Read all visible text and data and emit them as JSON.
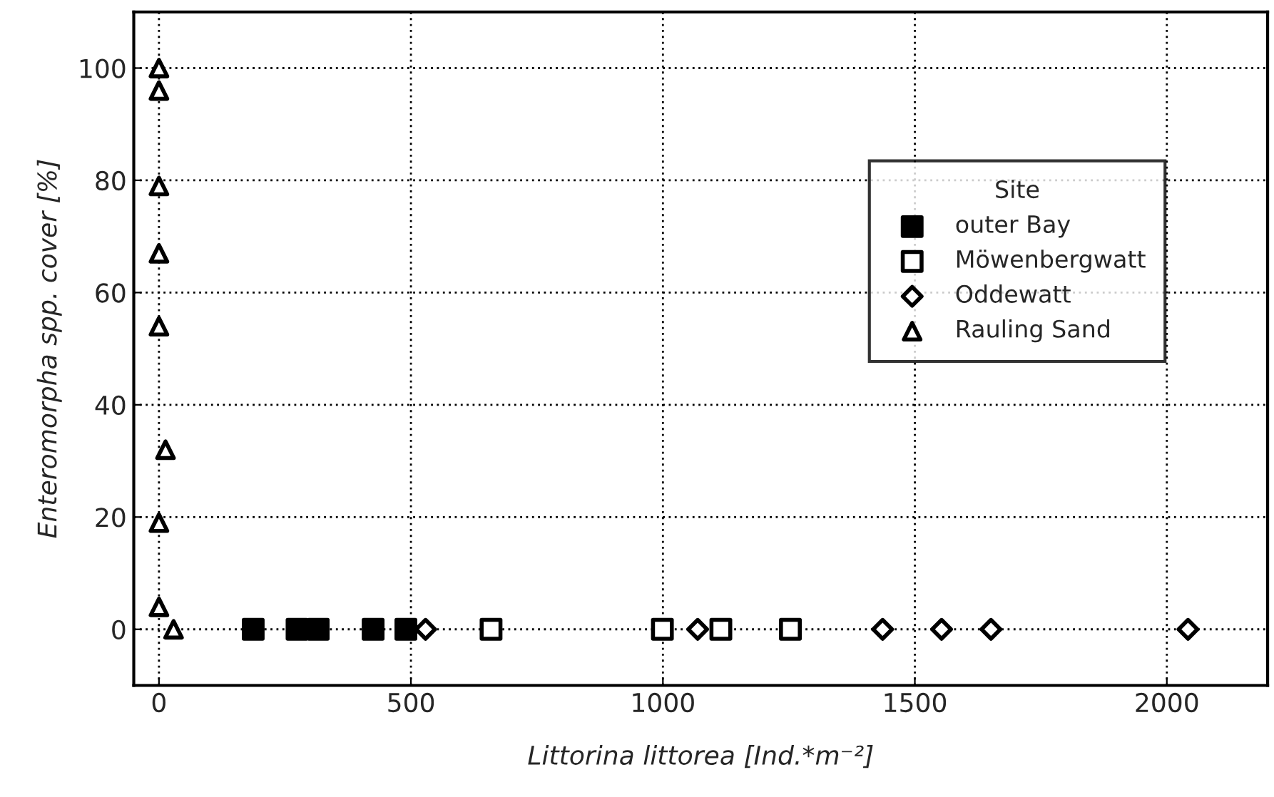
{
  "chart_data": {
    "type": "scatter",
    "xlabel": "Littorina littorea [Ind.*m⁻²]",
    "ylabel": "Enteromorpha spp. cover [%]",
    "legend_title": "Site",
    "legend": "right",
    "grid": true,
    "xlim": [
      -50,
      2200
    ],
    "ylim": [
      -10,
      110
    ],
    "xticks": [
      0,
      500,
      1000,
      1500,
      2000
    ],
    "yticks": [
      0,
      20,
      40,
      60,
      80,
      100
    ],
    "series": [
      {
        "name": "outer Bay",
        "color": "#000000",
        "marker": "square",
        "colors": [
          "#000000",
          "#000000",
          "#000000",
          "#000000",
          "#000000"
        ],
        "x": [
          187,
          274,
          316,
          425,
          490
        ],
        "values": [
          0,
          0,
          0,
          0,
          0
        ]
      },
      {
        "name": "Möwenbergwatt",
        "color": "#000000",
        "marker": "square",
        "colors": [
          "#ffffff",
          "#ffffff",
          "#ffffff",
          "#ffffff"
        ],
        "x": [
          659,
          999,
          1115,
          1253
        ],
        "values": [
          0,
          0,
          0,
          0
        ]
      },
      {
        "name": "Oddewatt",
        "color": "#000000",
        "marker": "diamond",
        "colors": [
          "#ffffff",
          "#ffffff",
          "#ffffff",
          "#ffffff",
          "#ffffff",
          "#ffffff"
        ],
        "x": [
          529,
          1069,
          1436,
          1553,
          1651,
          2042
        ],
        "values": [
          0,
          0,
          0,
          0,
          0,
          0
        ]
      },
      {
        "name": "Rauling Sand",
        "color": "#000000",
        "marker": "triangle",
        "colors": [
          "#ffffff",
          "#ffffff",
          "#ffffff",
          "#ffffff",
          "#ffffff",
          "#ffffff",
          "#ffffff",
          "#ffffff",
          "#ffffff"
        ],
        "x": [
          0,
          0,
          0,
          0,
          0,
          13,
          0,
          0,
          29
        ],
        "values": [
          100,
          96,
          79,
          67,
          54,
          32,
          19,
          4,
          0
        ]
      }
    ]
  }
}
